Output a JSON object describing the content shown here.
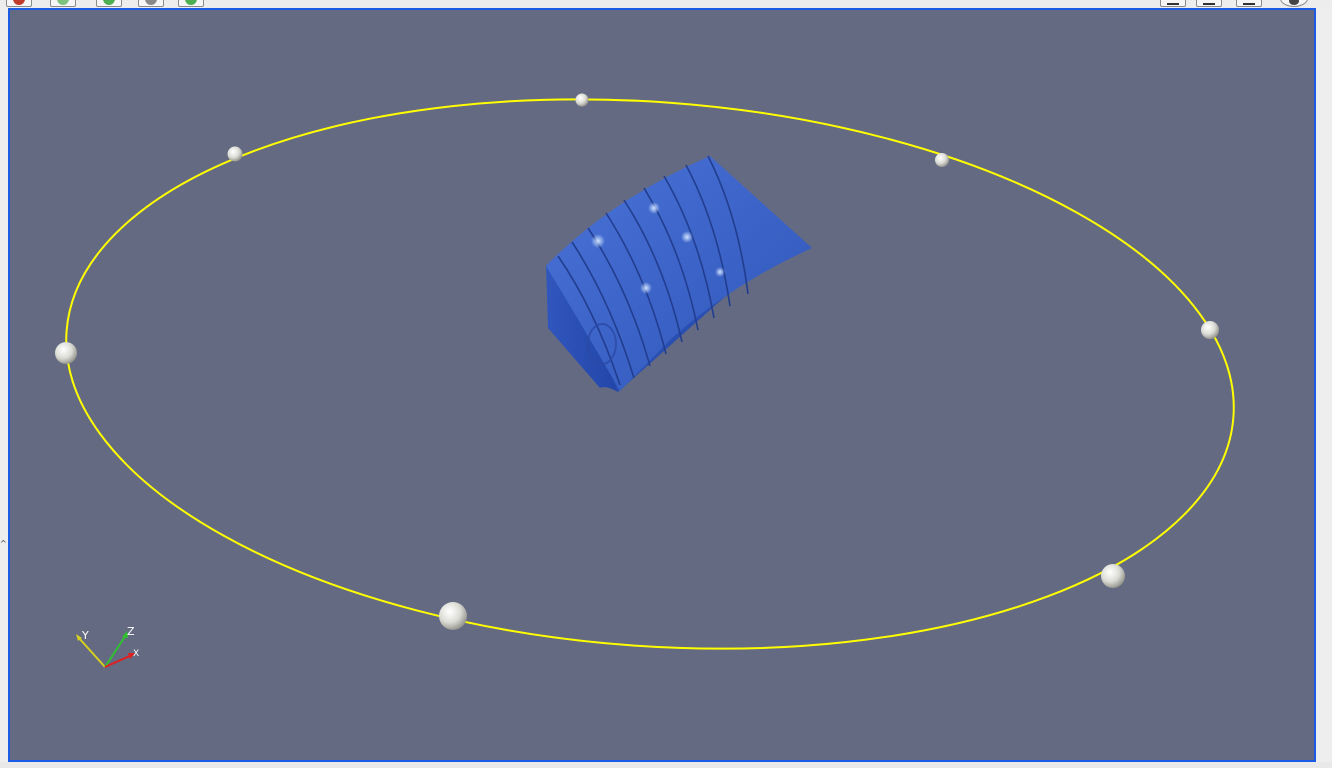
{
  "toolbar": {
    "left_buttons": [
      {
        "icon": "undo-camera-icon",
        "color": "#c0392b"
      },
      {
        "icon": "redo-camera-icon",
        "color": "#4caf50"
      },
      {
        "icon": "reset-camera-icon",
        "color": "#4caf50"
      },
      {
        "icon": "zoom-to-data-icon",
        "color": "#777777"
      },
      {
        "icon": "rotate-camera-icon",
        "color": "#4caf50"
      }
    ],
    "right_buttons": [
      {
        "icon": "split-horizontal-icon"
      },
      {
        "icon": "split-vertical-icon"
      },
      {
        "icon": "maximize-view-icon"
      },
      {
        "icon": "close-view-icon"
      }
    ]
  },
  "viewport": {
    "background_color": "#636a82",
    "active_border_color": "#1b5be6",
    "orbit_path": {
      "color": "#ffff00",
      "control_points": 7
    },
    "object": {
      "color": "#3d5fc2"
    },
    "orientation_axes": {
      "x_label": "X",
      "y_label": "Y",
      "z_label": "Z",
      "x_color": "#e02020",
      "y_color": "#d8d020",
      "z_color": "#30c030"
    }
  }
}
